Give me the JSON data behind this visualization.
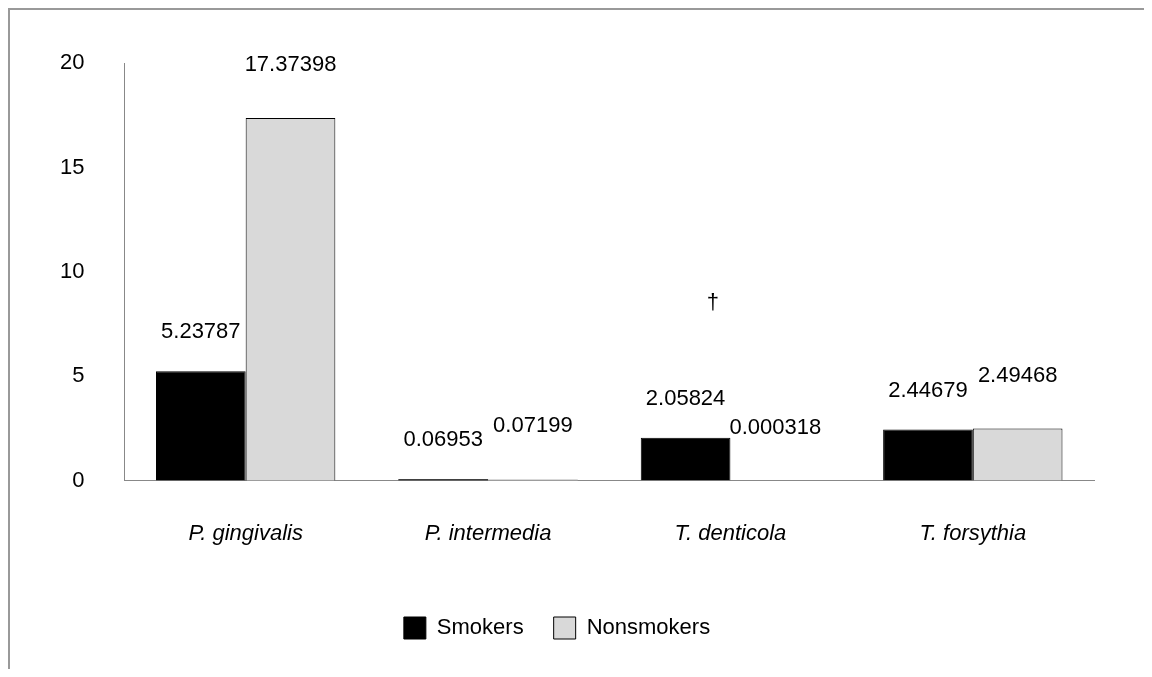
{
  "chart_data": {
    "type": "bar",
    "categories": [
      "P. gingivalis",
      "P. intermedia",
      "T. denticola",
      "T. forsythia"
    ],
    "series": [
      {
        "name": "Smokers",
        "color": "#000000",
        "values": [
          5.23787,
          0.06953,
          2.05824,
          2.44679
        ]
      },
      {
        "name": "Nonsmokers",
        "color": "#d9d9d9",
        "values": [
          17.37398,
          0.07199,
          0.000318,
          2.49468
        ]
      }
    ],
    "ylim": [
      0,
      20
    ],
    "yticks": [
      0,
      5,
      10,
      15,
      20
    ],
    "grid": false,
    "legend": "bottom",
    "data_labels": true,
    "annotations": [
      "†"
    ]
  }
}
